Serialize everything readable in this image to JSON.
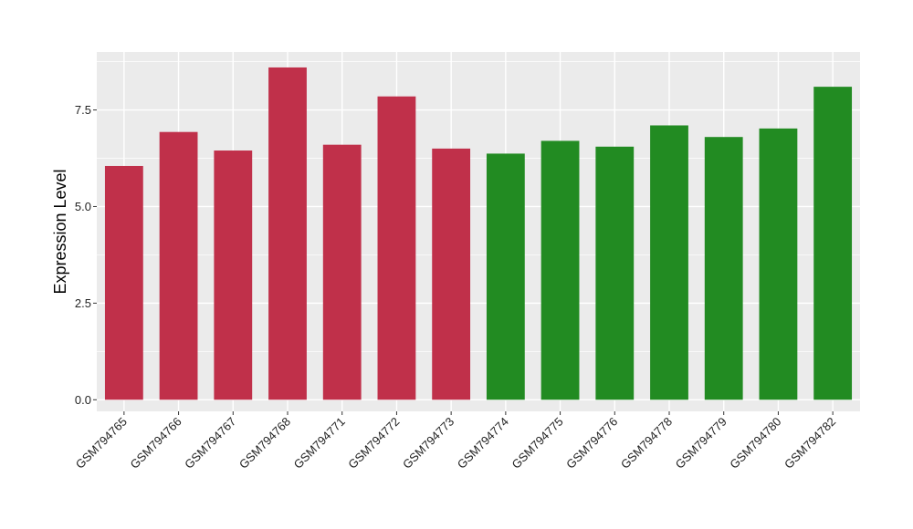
{
  "chart_data": {
    "type": "bar",
    "title": "",
    "xlabel": "",
    "ylabel": "Expression Level",
    "ylim": [
      -0.3,
      9.0
    ],
    "yticks": [
      0.0,
      2.5,
      5.0,
      7.5
    ],
    "ytick_labels": [
      "0.0",
      "2.5",
      "5.0",
      "7.5"
    ],
    "grid": true,
    "legend": "none",
    "categories": [
      "GSM794765",
      "GSM794766",
      "GSM794767",
      "GSM794768",
      "GSM794771",
      "GSM794772",
      "GSM794773",
      "GSM794774",
      "GSM794775",
      "GSM794776",
      "GSM794778",
      "GSM794779",
      "GSM794780",
      "GSM794782"
    ],
    "values": [
      6.05,
      6.93,
      6.45,
      8.6,
      6.6,
      7.85,
      6.5,
      6.37,
      6.7,
      6.55,
      7.1,
      6.8,
      7.02,
      8.1
    ],
    "bar_colors": [
      "#c0304a",
      "#c0304a",
      "#c0304a",
      "#c0304a",
      "#c0304a",
      "#c0304a",
      "#c0304a",
      "#228b22",
      "#228b22",
      "#228b22",
      "#228b22",
      "#228b22",
      "#228b22",
      "#228b22"
    ],
    "panel_background": "#ebebeb",
    "grid_color": "#ffffff"
  }
}
